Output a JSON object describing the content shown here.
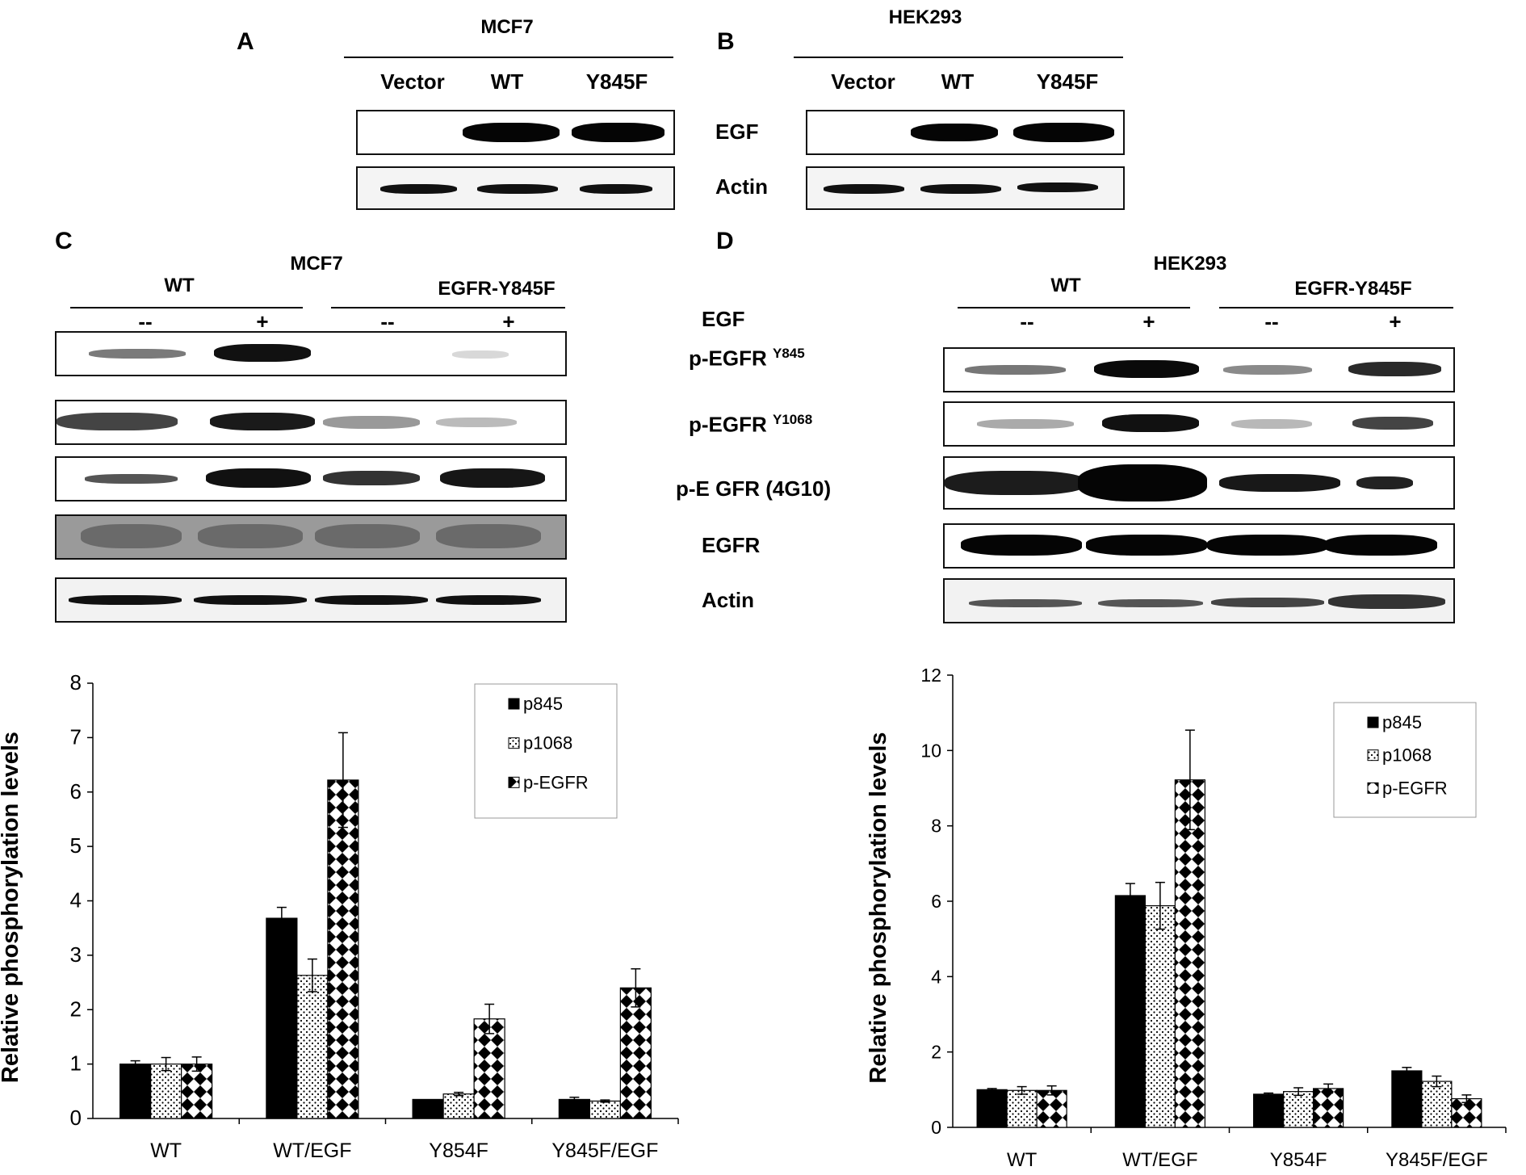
{
  "panels": {
    "A": {
      "letter": "A",
      "cell": "MCF7",
      "lanes": [
        "Vector",
        "WT",
        "Y845F"
      ],
      "rows": [
        "EGF",
        "Actin"
      ]
    },
    "B": {
      "letter": "B",
      "cell": "HEK293",
      "lanes": [
        "Vector",
        "WT",
        "Y845F"
      ],
      "rows": [
        "EGF",
        "Actin"
      ]
    },
    "C": {
      "letter": "C",
      "cell": "MCF7",
      "groups": [
        "WT",
        "EGFR-Y845F"
      ],
      "treat": [
        "--",
        "+",
        "--",
        "+"
      ]
    },
    "D": {
      "letter": "D",
      "cell": "HEK293",
      "groups": [
        "WT",
        "EGFR-Y845F"
      ],
      "treat": [
        "--",
        "+",
        "--",
        "+"
      ],
      "egf_label": "EGF",
      "rows": [
        {
          "main": "p-EGFR",
          "sup": "Y845"
        },
        {
          "main": "p-EGFR",
          "sup": "Y1068"
        },
        {
          "main": "p-E GFR (4G10)",
          "sup": ""
        },
        {
          "main": "EGFR",
          "sup": ""
        },
        {
          "main": "Actin",
          "sup": ""
        }
      ]
    }
  },
  "chart_data": [
    {
      "type": "bar",
      "title": "",
      "xlabel": "",
      "ylabel": "Relative phosphorylation levels",
      "ylim": [
        0,
        8
      ],
      "yticks": [
        0,
        1,
        2,
        3,
        4,
        5,
        6,
        7,
        8
      ],
      "categories": [
        "WT",
        "WT/EGF",
        "Y854F",
        "Y845F/EGF"
      ],
      "legend_position": "top-right",
      "grid": false,
      "series": [
        {
          "name": "p845",
          "pattern": "solid",
          "values": [
            1.0,
            3.68,
            0.35,
            0.35
          ],
          "errors": [
            0.06,
            0.2,
            0.0,
            0.04
          ]
        },
        {
          "name": "p1068",
          "pattern": "dots",
          "values": [
            1.0,
            2.63,
            0.45,
            0.32
          ],
          "errors": [
            0.12,
            0.3,
            0.03,
            0.02
          ]
        },
        {
          "name": "p-EGFR",
          "pattern": "diamonds",
          "values": [
            1.0,
            6.22,
            1.83,
            2.4
          ],
          "errors": [
            0.13,
            0.87,
            0.27,
            0.35
          ]
        }
      ]
    },
    {
      "type": "bar",
      "title": "",
      "xlabel": "",
      "ylabel": "Relative phosphorylation levels",
      "ylim": [
        0,
        12
      ],
      "yticks": [
        0,
        2,
        4,
        6,
        8,
        10,
        12
      ],
      "categories": [
        "WT",
        "WT/EGF",
        "Y854F",
        "Y845F/EGF"
      ],
      "legend_position": "top-right",
      "grid": false,
      "series": [
        {
          "name": "p845",
          "pattern": "solid",
          "values": [
            1.0,
            6.15,
            0.88,
            1.5
          ],
          "errors": [
            0.03,
            0.32,
            0.03,
            0.09
          ]
        },
        {
          "name": "p1068",
          "pattern": "dots",
          "values": [
            0.98,
            5.88,
            0.95,
            1.22
          ],
          "errors": [
            0.1,
            0.62,
            0.1,
            0.14
          ]
        },
        {
          "name": "p-EGFR",
          "pattern": "diamonds",
          "values": [
            0.98,
            9.22,
            1.03,
            0.76
          ],
          "errors": [
            0.12,
            1.32,
            0.12,
            0.1
          ]
        }
      ]
    }
  ]
}
